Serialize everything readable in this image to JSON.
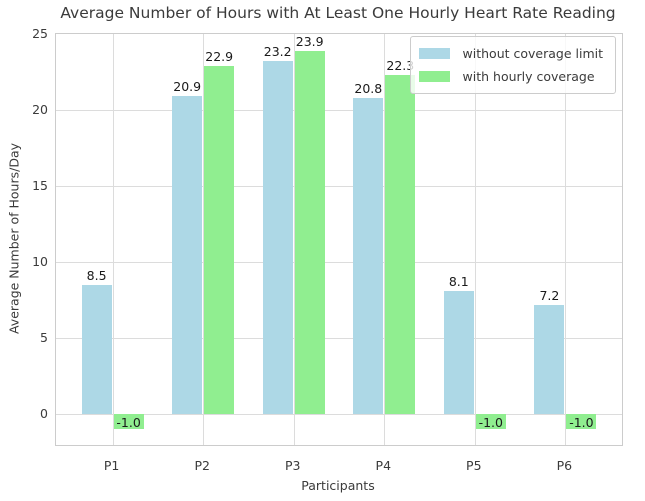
{
  "chart_data": {
    "type": "bar",
    "title": "Average Number of Hours with At Least One Hourly Heart Rate Reading",
    "xlabel": "Participants",
    "ylabel": "Average Number of Hours/Day",
    "categories": [
      "P1",
      "P2",
      "P3",
      "P4",
      "P5",
      "P6"
    ],
    "series": [
      {
        "name": "without coverage limit",
        "color": "#ADD8E6",
        "values": [
          8.5,
          20.9,
          23.2,
          20.8,
          8.1,
          7.2
        ]
      },
      {
        "name": "with hourly coverage",
        "color": "#90EE90",
        "values": [
          -1.0,
          22.9,
          23.9,
          22.3,
          -1.0,
          -1.0
        ]
      }
    ],
    "bar_value_labels": [
      [
        "8.5",
        "20.9",
        "23.2",
        "20.8",
        "8.1",
        "7.2"
      ],
      [
        "-1.0",
        "22.9",
        "23.9",
        "22.3",
        "-1.0",
        "-1.0"
      ]
    ],
    "yticks": [
      0,
      5,
      10,
      15,
      20,
      25
    ],
    "ylim": [
      -2.04,
      25
    ],
    "grid": true,
    "legend_position": "upper right",
    "colors": {
      "grid": "#dcdcdc",
      "spine": "#cccccc",
      "text": "#3b3b3b",
      "bar_label_text": "#1a1a1a"
    }
  }
}
